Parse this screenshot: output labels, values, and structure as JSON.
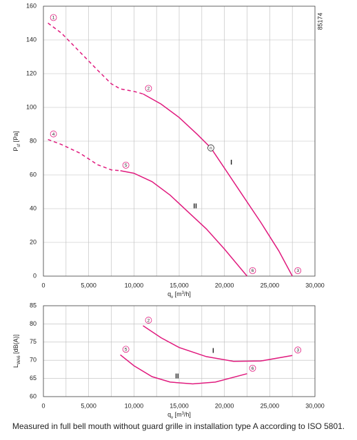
{
  "chart_data": [
    {
      "type": "line",
      "side_note": "85174",
      "xlabel": [
        {
          "text": "q"
        },
        {
          "text": "v",
          "shift": "sub"
        },
        {
          "text": " [m"
        },
        {
          "text": "3",
          "shift": "super"
        },
        {
          "text": "/h]"
        }
      ],
      "ylabel": [
        {
          "text": "P"
        },
        {
          "text": "sf",
          "shift": "sub"
        },
        {
          "text": " [Pa]"
        }
      ],
      "xlim": [
        0,
        30000
      ],
      "xticks": [
        0,
        {
          "value": 5000,
          "label": "5,000"
        },
        {
          "value": 10000,
          "label": "10,000"
        },
        {
          "value": 15000,
          "label": "15,000"
        },
        {
          "value": 20000,
          "label": "20,000"
        },
        {
          "value": 25000,
          "label": "25,000"
        },
        {
          "value": 30000,
          "label": "30,000"
        }
      ],
      "x_minor_ticks": [
        2500,
        7500,
        12500,
        17500,
        22500,
        27500
      ],
      "ylim": [
        0,
        160
      ],
      "yticks": [
        0,
        20,
        40,
        60,
        80,
        100,
        120,
        140,
        160
      ],
      "grid": true,
      "series": [
        {
          "name": "I",
          "color": "#e0197d",
          "segments": [
            {
              "style": "dashed",
              "x": [
                500,
                2000,
                4000,
                6000,
                7500,
                8500,
                10000,
                11000
              ],
              "values": [
                150,
                144,
                133,
                122,
                114,
                111,
                109.5,
                108
              ]
            },
            {
              "style": "solid",
              "x": [
                11000,
                13000,
                15000,
                17000,
                18500,
                20000,
                22000,
                24000,
                26000,
                27500
              ],
              "values": [
                108,
                102,
                94,
                84,
                76,
                64,
                48,
                32,
                15,
                0
              ]
            }
          ]
        },
        {
          "name": "II",
          "color": "#e0197d",
          "segments": [
            {
              "style": "dashed",
              "x": [
                500,
                2000,
                4000,
                6000,
                7500,
                8500
              ],
              "values": [
                81,
                78,
                73,
                66,
                63,
                62.5
              ]
            },
            {
              "style": "solid",
              "x": [
                8500,
                10000,
                12000,
                14000,
                16000,
                18000,
                20000,
                22500
              ],
              "values": [
                62.5,
                61,
                56,
                48,
                38,
                28,
                16,
                0
              ]
            }
          ]
        }
      ],
      "points": [
        {
          "label": "1",
          "x": 500,
          "y": 150,
          "color": "#e0197d"
        },
        {
          "label": "2",
          "x": 11000,
          "y": 108,
          "color": "#e0197d"
        },
        {
          "label": "3",
          "x": 27500,
          "y": 0,
          "color": "#e0197d"
        },
        {
          "label": "4",
          "x": 500,
          "y": 81,
          "color": "#e0197d"
        },
        {
          "label": "5",
          "x": 8500,
          "y": 62.5,
          "color": "#e0197d"
        },
        {
          "label": "6",
          "x": 22500,
          "y": 0,
          "color": "#e0197d"
        },
        {
          "label": "n",
          "x": 18500,
          "y": 76,
          "color": "#222222",
          "on_curve": true
        }
      ]
    },
    {
      "type": "line",
      "xlabel": [
        {
          "text": "q"
        },
        {
          "text": "v",
          "shift": "sub"
        },
        {
          "text": " [m"
        },
        {
          "text": "3",
          "shift": "super"
        },
        {
          "text": "/h]"
        }
      ],
      "ylabel": [
        {
          "text": "L"
        },
        {
          "text": "WA6",
          "shift": "sub"
        },
        {
          "text": " [dB(A)]"
        }
      ],
      "xlim": [
        0,
        30000
      ],
      "xticks": [
        0,
        {
          "value": 5000,
          "label": "5,000"
        },
        {
          "value": 10000,
          "label": "10,000"
        },
        {
          "value": 15000,
          "label": "15,000"
        },
        {
          "value": 20000,
          "label": "20,000"
        },
        {
          "value": 25000,
          "label": "25,000"
        },
        {
          "value": 30000,
          "label": "30,000"
        }
      ],
      "x_minor_ticks": [
        2500,
        7500,
        12500,
        17500,
        22500,
        27500
      ],
      "ylim": [
        60,
        85
      ],
      "yticks": [
        60,
        65,
        70,
        75,
        80,
        85
      ],
      "grid": true,
      "series": [
        {
          "name": "I",
          "color": "#e0197d",
          "segments": [
            {
              "style": "solid",
              "x": [
                11000,
                13000,
                15000,
                18000,
                21000,
                24000,
                27500
              ],
              "values": [
                79.5,
                76.2,
                73.5,
                71,
                69.7,
                69.8,
                71.3
              ]
            }
          ]
        },
        {
          "name": "II",
          "color": "#e0197d",
          "segments": [
            {
              "style": "solid",
              "x": [
                8500,
                10000,
                12000,
                14000,
                16500,
                19000,
                22500
              ],
              "values": [
                71.5,
                68.5,
                65.5,
                64,
                63.5,
                64,
                66.3
              ]
            }
          ]
        }
      ],
      "points": [
        {
          "label": "2",
          "x": 11000,
          "y": 79.5,
          "color": "#e0197d"
        },
        {
          "label": "3",
          "x": 27500,
          "y": 71.3,
          "color": "#e0197d"
        },
        {
          "label": "5",
          "x": 8500,
          "y": 71.5,
          "color": "#e0197d"
        },
        {
          "label": "6",
          "x": 22500,
          "y": 66.3,
          "color": "#e0197d"
        }
      ]
    }
  ],
  "caption": "Measured in full bell mouth without guard grille in installation type A according to ISO 5801."
}
